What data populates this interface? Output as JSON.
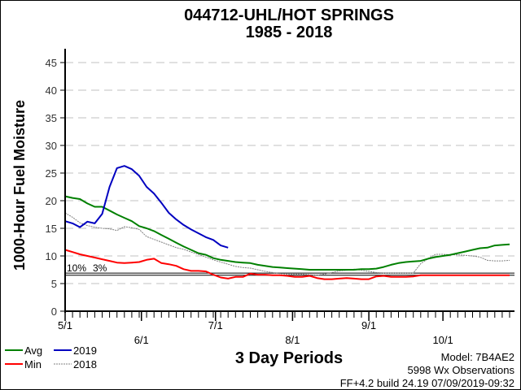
{
  "chart_data": {
    "type": "line",
    "title": "044712-UHL/HOT SPRINGS",
    "subtitle": "1985 - 2018",
    "xlabel": "3 Day Periods",
    "ylabel": "1000-Hour Fuel Moisture",
    "ylim": [
      0,
      45
    ],
    "yticks": [
      "0",
      "5",
      "10",
      "15",
      "20",
      "25",
      "30",
      "35",
      "40",
      "45"
    ],
    "ytick_values": [
      0,
      5,
      10,
      15,
      20,
      25,
      30,
      35,
      40,
      45
    ],
    "xticks": [
      {
        "label": "5/1",
        "period": 0
      },
      {
        "label": "6/1",
        "period": 10.3
      },
      {
        "label": "7/1",
        "period": 20.3
      },
      {
        "label": "8/1",
        "period": 30.7
      },
      {
        "label": "9/1",
        "period": 41
      },
      {
        "label": "10/1",
        "period": 51
      }
    ],
    "grid": true,
    "reference_lines": [
      {
        "label": "10%",
        "value": 6.9
      },
      {
        "label": "3%",
        "value": 6.5
      }
    ],
    "series": [
      {
        "name": "Avg",
        "color": "#008000",
        "values": [
          20.8,
          20.5,
          20.3,
          19.5,
          18.9,
          18.9,
          18.2,
          17.5,
          16.9,
          16.3,
          15.4,
          15.0,
          14.5,
          13.8,
          13.1,
          12.4,
          11.7,
          11.1,
          10.5,
          10.2,
          9.6,
          9.3,
          9.1,
          8.9,
          8.8,
          8.7,
          8.4,
          8.2,
          8.0,
          7.9,
          7.8,
          7.7,
          7.6,
          7.5,
          7.5,
          7.5,
          7.5,
          7.5,
          7.5,
          7.5,
          7.6,
          7.6,
          7.7,
          8.0,
          8.4,
          8.7,
          8.9,
          9.0,
          9.1,
          9.5,
          9.8,
          10.0,
          10.2,
          10.5,
          10.8,
          11.1,
          11.4,
          11.5,
          11.9,
          12.0,
          12.1
        ]
      },
      {
        "name": "Min",
        "color": "#ff0000",
        "values": [
          11.1,
          10.7,
          10.3,
          10.0,
          9.7,
          9.4,
          9.1,
          8.8,
          8.7,
          8.8,
          8.9,
          9.3,
          9.5,
          8.7,
          8.5,
          8.2,
          7.6,
          7.3,
          7.3,
          7.2,
          6.6,
          6.1,
          5.9,
          6.2,
          6.2,
          6.8,
          6.6,
          6.6,
          6.5,
          6.5,
          6.4,
          6.2,
          6.2,
          6.4,
          6.0,
          5.8,
          5.8,
          5.9,
          6.0,
          5.9,
          5.8,
          5.8,
          6.3,
          6.4,
          6.2,
          6.2,
          6.2,
          6.3,
          6.5,
          6.5,
          6.5,
          6.5,
          6.5,
          6.5,
          6.5,
          6.5,
          6.5,
          6.5,
          6.5,
          6.5,
          6.5
        ]
      },
      {
        "name": "2019",
        "color": "#0000c0",
        "values": [
          16.3,
          15.9,
          15.2,
          16.2,
          15.9,
          17.6,
          22.5,
          25.9,
          26.3,
          25.7,
          24.5,
          22.5,
          21.3,
          19.6,
          17.8,
          16.6,
          15.6,
          14.8,
          14.1,
          13.4,
          12.9,
          11.9,
          11.5
        ]
      },
      {
        "name": "2018",
        "color": "#808080",
        "dashed": true,
        "values": [
          17.8,
          17.0,
          16.0,
          15.5,
          15.2,
          15.0,
          14.9,
          14.6,
          15.3,
          15.1,
          14.8,
          13.5,
          13.0,
          12.5,
          12.0,
          11.5,
          11.2,
          10.7,
          10.3,
          9.8,
          9.3,
          8.9,
          8.5,
          8.1,
          7.9,
          7.8,
          7.5,
          7.2,
          7.0,
          6.8,
          6.7,
          6.7,
          6.7,
          6.6,
          6.5,
          6.7,
          7.0,
          7.3,
          7.4,
          7.6,
          7.4,
          7.2,
          7.0,
          6.9,
          6.9,
          6.9,
          6.9,
          6.9,
          8.6,
          9.5,
          10.3,
          10.3,
          10.2,
          10.2,
          10.1,
          10.0,
          9.8,
          9.2,
          9.1,
          9.1,
          9.2
        ]
      }
    ],
    "legend_placement": "bottom-left"
  },
  "footer": {
    "model": "Model: 7B4AE2",
    "observations": "5998 Wx Observations",
    "build": "FF+4.2 build 24.19 07/09/2019-09:32"
  }
}
